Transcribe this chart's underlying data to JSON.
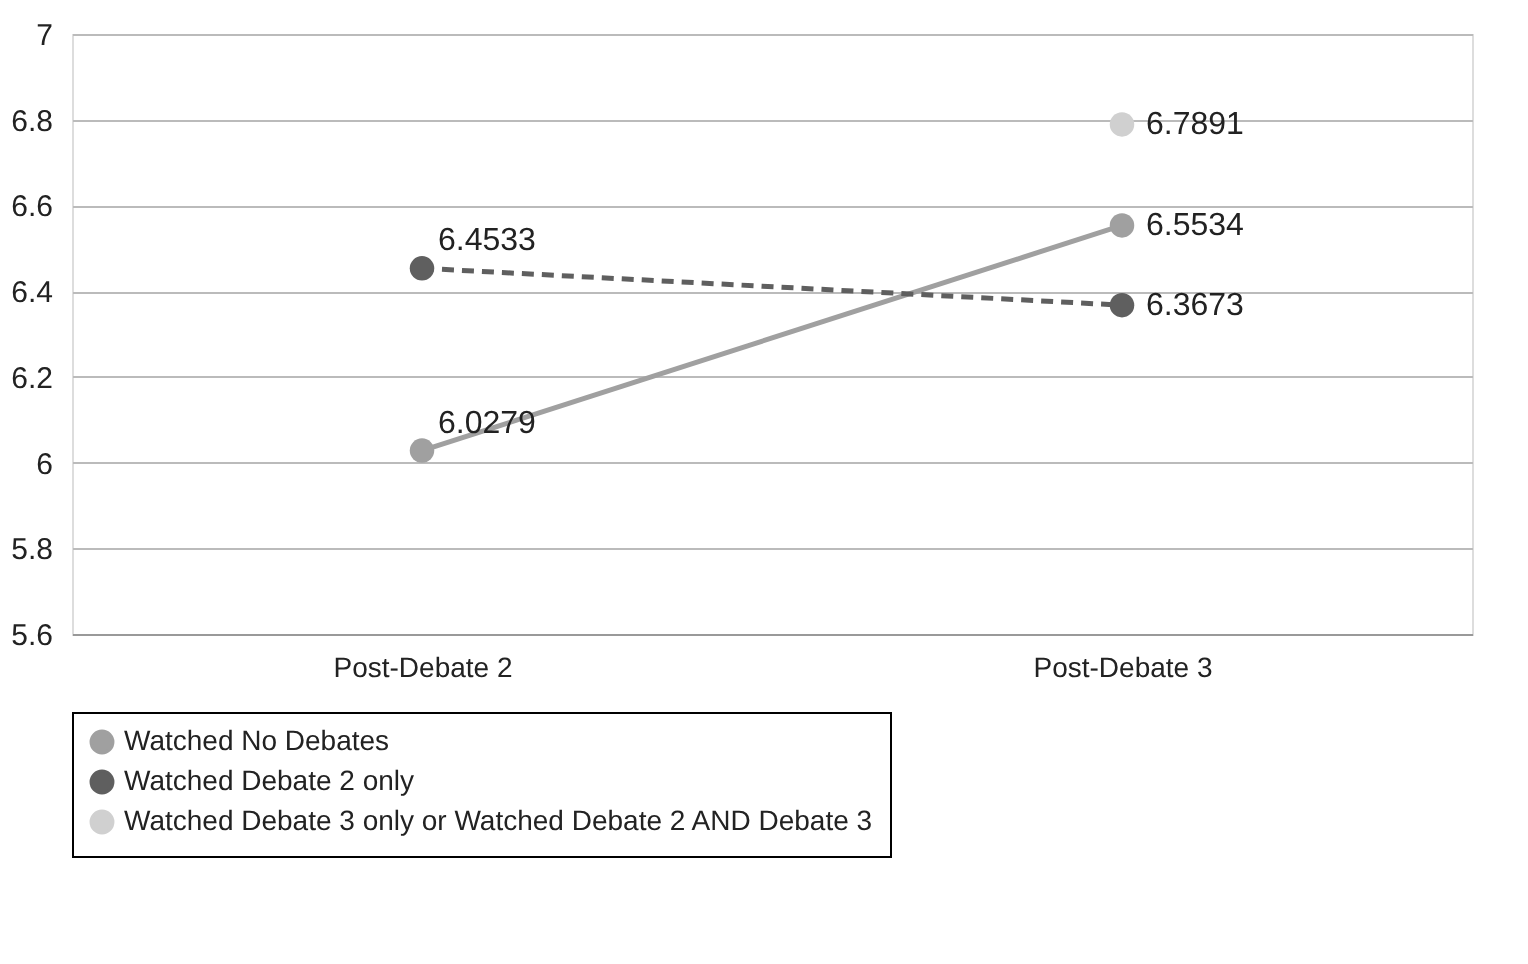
{
  "chart_data": {
    "type": "line",
    "categories": [
      "Post-Debate 2",
      "Post-Debate 3"
    ],
    "series": [
      {
        "name": "Watched No Debates",
        "color": "#a0a0a0",
        "values": [
          6.0279,
          6.5534
        ],
        "line_style": "solid"
      },
      {
        "name": "Watched Debate 2 only",
        "color": "#5f5f5f",
        "values": [
          6.4533,
          6.3673
        ],
        "line_style": "dashed"
      },
      {
        "name": "Watched Debate 3 only or Watched Debate 2 AND Debate 3",
        "color": "#d0d0d0",
        "values": [
          null,
          6.7891
        ],
        "line_style": "solid"
      }
    ],
    "ylim": [
      5.6,
      7
    ],
    "yticks": [
      5.6,
      5.8,
      6,
      6.2,
      6.4,
      6.6,
      6.8,
      7
    ],
    "grid": "y",
    "legend": "bottom",
    "marker": "circle",
    "data_labels": true
  }
}
